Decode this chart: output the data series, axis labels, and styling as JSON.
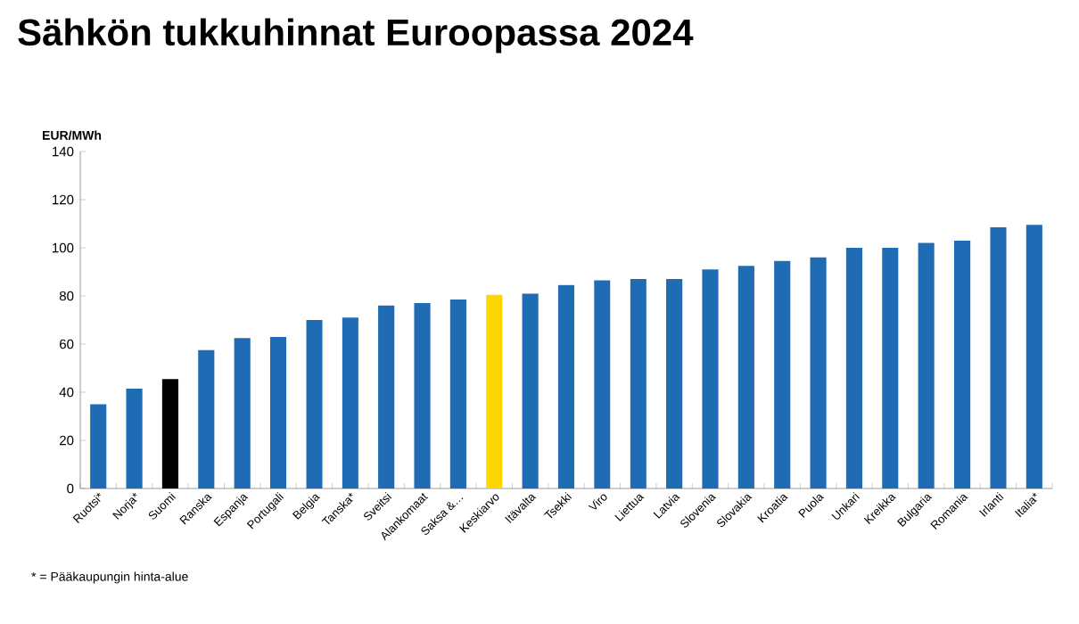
{
  "chart_data": {
    "type": "bar",
    "title": "Sähkön tukkuhinnat Euroopassa 2024",
    "ylabel": "EUR/MWh",
    "categories": [
      "Ruotsi*",
      "Norja*",
      "Suomi",
      "Ranska",
      "Espanja",
      "Portugali",
      "Belgia",
      "Tanska*",
      "Sveitsi",
      "Alankomaat",
      "Saksa &…",
      "Keskiarvo",
      "Itävalta",
      "Tsekki",
      "Viro",
      "Liettua",
      "Latvia",
      "Slovenia",
      "Slovakia",
      "Kroatia",
      "Puola",
      "Unkari",
      "Kreikka",
      "Bulgaria",
      "Romania",
      "Irlanti",
      "Italia*"
    ],
    "values": [
      35,
      41.5,
      45.5,
      57.5,
      62.5,
      63,
      70,
      71,
      76,
      77,
      78.5,
      80.5,
      81,
      84.5,
      86.5,
      87,
      87,
      91,
      92.5,
      94.5,
      96,
      100,
      100,
      102,
      103,
      108.5,
      109.5
    ],
    "colors": [
      "#1f6cb4",
      "#1f6cb4",
      "#000000",
      "#1f6cb4",
      "#1f6cb4",
      "#1f6cb4",
      "#1f6cb4",
      "#1f6cb4",
      "#1f6cb4",
      "#1f6cb4",
      "#1f6cb4",
      "#ffd700",
      "#1f6cb4",
      "#1f6cb4",
      "#1f6cb4",
      "#1f6cb4",
      "#1f6cb4",
      "#1f6cb4",
      "#1f6cb4",
      "#1f6cb4",
      "#1f6cb4",
      "#1f6cb4",
      "#1f6cb4",
      "#1f6cb4",
      "#1f6cb4",
      "#1f6cb4",
      "#1f6cb4"
    ],
    "ylim": [
      0,
      140
    ],
    "yticks": [
      0,
      20,
      40,
      60,
      80,
      100,
      120,
      140
    ],
    "annotations": [
      "* = Pääkaupungin hinta-alue"
    ]
  }
}
